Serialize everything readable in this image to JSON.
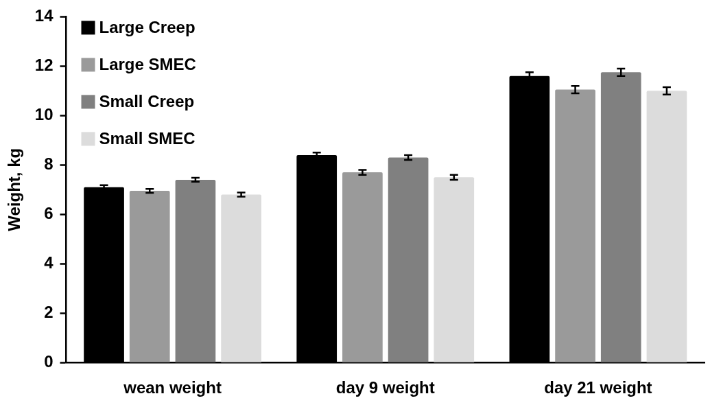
{
  "chart_data": {
    "type": "bar",
    "ylabel": "Weight, kg",
    "categories": [
      "wean weight",
      "day 9 weight",
      "day 21 weight"
    ],
    "series": [
      {
        "name": "Large Creep",
        "color": "#000000",
        "values": [
          7.1,
          8.4,
          11.6
        ],
        "errors": [
          0.08,
          0.1,
          0.15
        ]
      },
      {
        "name": "Large SMEC",
        "color": "#9a9a9a",
        "values": [
          6.95,
          7.7,
          11.05
        ],
        "errors": [
          0.08,
          0.1,
          0.15
        ]
      },
      {
        "name": "Small Creep",
        "color": "#808080",
        "values": [
          7.4,
          8.3,
          11.75
        ],
        "errors": [
          0.08,
          0.1,
          0.15
        ]
      },
      {
        "name": "Small SMEC",
        "color": "#dcdcdc",
        "values": [
          6.8,
          7.5,
          11.0
        ],
        "errors": [
          0.08,
          0.1,
          0.15
        ]
      }
    ],
    "ylim": [
      0,
      14
    ],
    "yticks": [
      0,
      2,
      4,
      6,
      8,
      10,
      12,
      14
    ],
    "grid": false,
    "legend": "top left"
  }
}
